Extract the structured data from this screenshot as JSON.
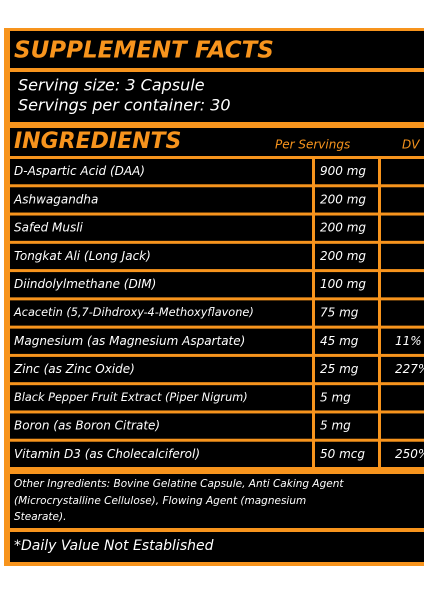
{
  "header": {
    "title": "SUPPLEMENT FACTS",
    "serving_size": "Serving size: 3 Capsule",
    "servings_per_container": "Servings per container: 30"
  },
  "table": {
    "title": "INGREDIENTS",
    "columns": [
      "Per Servings",
      "DV"
    ],
    "rows": [
      {
        "name": "D-Aspartic Acid (DAA)",
        "amount": "900 mg"
      },
      {
        "name": "Ashwagandha",
        "amount": "200 mg"
      },
      {
        "name": "Safed Musli",
        "amount": "200 mg"
      },
      {
        "name": "Tongkat Ali (Long Jack)",
        "amount": "200 mg"
      },
      {
        "name": "Diindolylmethane (DIM)",
        "amount": "100 mg"
      },
      {
        "name": "Acacetin (5,7-Dihdroxy-4-Methoxyflavone)",
        "amount": "75 mg"
      },
      {
        "name": "Magnesium (as Magnesium Aspartate)",
        "amount": "45 mg",
        "dv": "11%"
      },
      {
        "name": "Zinc (as Zinc Oxide)",
        "amount": "25 mg",
        "dv": "227%"
      },
      {
        "name": "Black Pepper Fruit Extract (Piper Nigrum)",
        "amount": "5 mg"
      },
      {
        "name": "Boron (as Boron Citrate)",
        "amount": "5 mg"
      },
      {
        "name": "Vitamin D3 (as Cholecalciferol)",
        "amount": "50 mcg",
        "dv": "250%"
      }
    ]
  },
  "footer": {
    "other_ingredients": [
      "Other Ingredients: Bovine Gelatine Capsule, Anti Caking Agent",
      "(Microcrystalline Cellulose), Flowing Agent (magnesium",
      "Stearate)."
    ],
    "note": "*Daily Value Not Established"
  }
}
